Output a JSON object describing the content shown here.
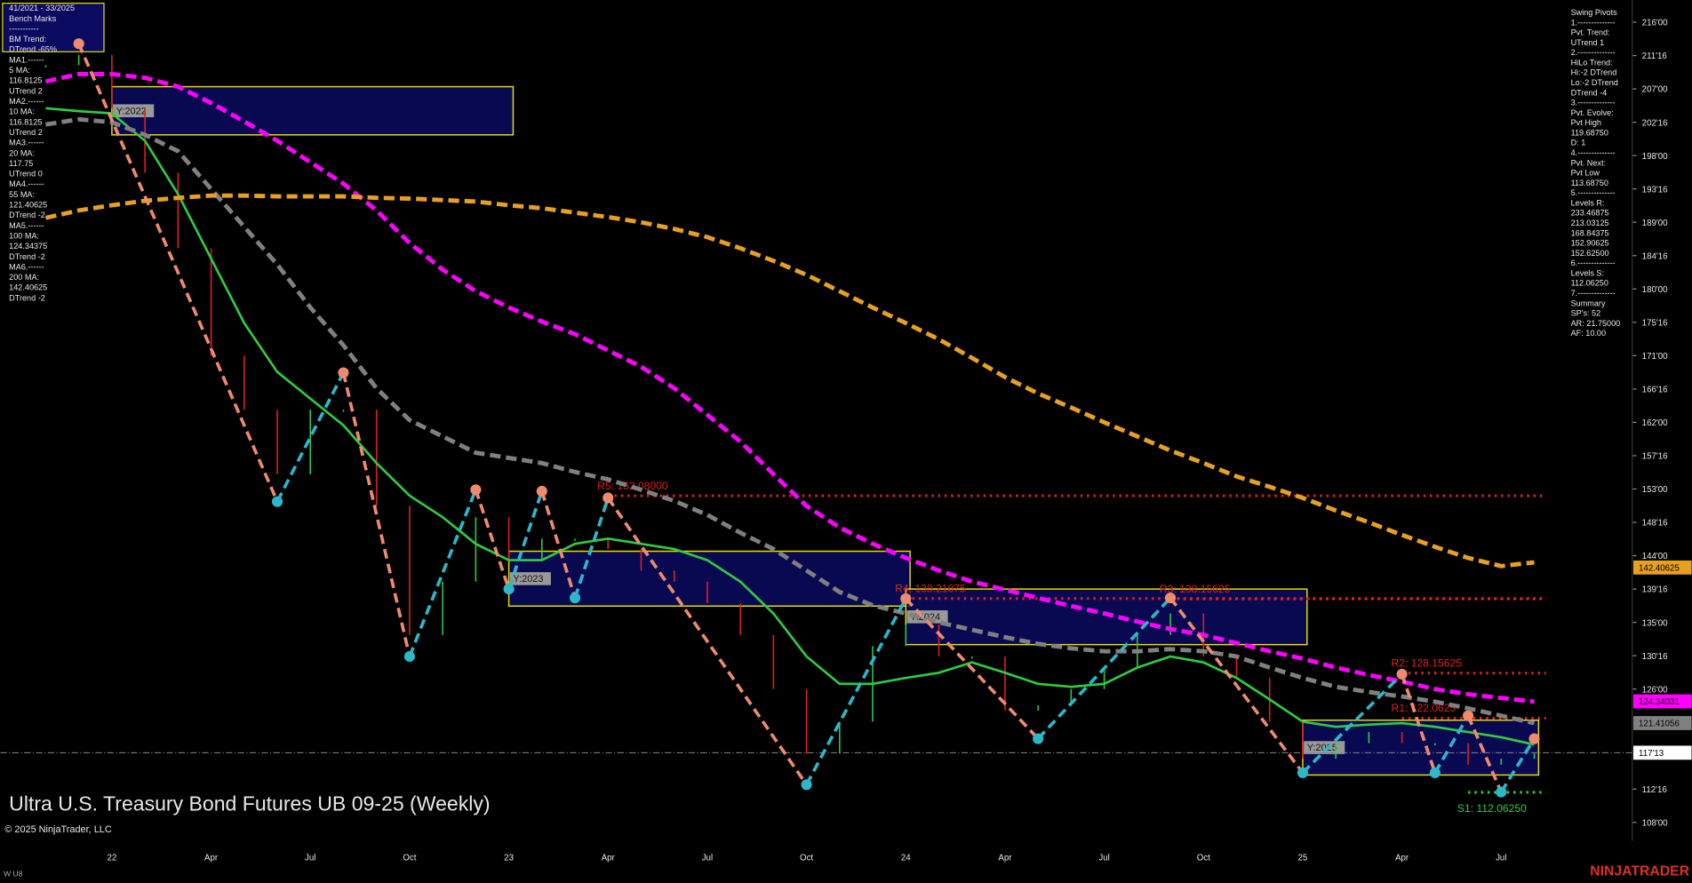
{
  "chart_data": {
    "type": "line",
    "title": "Ultra U.S. Treasury Bond Futures UB 09-25 (Weekly)",
    "copyright": "© 2025 NinjaTrader, LLC",
    "instrument_tag": "W U8",
    "brand": "NINJATRADER",
    "categories": [
      null,
      null,
      "22",
      null,
      null,
      "Apr",
      null,
      null,
      "Jul",
      null,
      null,
      "Oct",
      null,
      null,
      "23",
      null,
      null,
      "Apr",
      null,
      null,
      "Jul",
      null,
      null,
      "Oct",
      null,
      null,
      "24",
      null,
      null,
      "Apr",
      null,
      null,
      "Jul",
      null,
      null,
      "Oct",
      null,
      null,
      "25",
      null,
      null,
      "Apr",
      null,
      null,
      "Jul",
      null
    ],
    "ylim": [
      105.5,
      219
    ],
    "yticks": [
      {
        "value": 216,
        "label": "216'00"
      },
      {
        "value": 211.5,
        "label": "211'16"
      },
      {
        "value": 207,
        "label": "207'00"
      },
      {
        "value": 202.5,
        "label": "202'16"
      },
      {
        "value": 198,
        "label": "198'00"
      },
      {
        "value": 193.5,
        "label": "193'16"
      },
      {
        "value": 189,
        "label": "189'00"
      },
      {
        "value": 184.5,
        "label": "184'16"
      },
      {
        "value": 180,
        "label": "180'00"
      },
      {
        "value": 175.5,
        "label": "175'16"
      },
      {
        "value": 171,
        "label": "171'00"
      },
      {
        "value": 166.5,
        "label": "166'16"
      },
      {
        "value": 162,
        "label": "162'00"
      },
      {
        "value": 157.5,
        "label": "157'16"
      },
      {
        "value": 153,
        "label": "153'00"
      },
      {
        "value": 148.5,
        "label": "148'16"
      },
      {
        "value": 144,
        "label": "144'00"
      },
      {
        "value": 139.5,
        "label": "139'16"
      },
      {
        "value": 135,
        "label": "135'00"
      },
      {
        "value": 130.5,
        "label": "130'16"
      },
      {
        "value": 126,
        "label": "126'00"
      },
      {
        "value": 112.5,
        "label": "112'16"
      },
      {
        "value": 108,
        "label": "108'00"
      }
    ],
    "close": {
      "up_color": "#2ecc40",
      "down_color": "#e02020",
      "values": [
        210.2,
        211.6,
        204.4,
        195.7,
        185.5,
        171,
        163.7,
        155,
        163.7,
        163.7,
        150.7,
        133.3,
        140.5,
        149.2,
        143.4,
        146.3,
        146.3,
        144.9,
        142,
        140.5,
        137.6,
        133.3,
        126,
        117.3,
        121.6,
        131.8,
        134.7,
        130.4,
        130.4,
        123.1,
        123.8,
        126,
        128.9,
        133.3,
        136.2,
        130.4,
        127.5,
        121.6,
        116.6,
        118.7,
        120.2,
        118.7,
        118.7,
        115.8,
        116.6,
        117.3
      ]
    },
    "series": [
      {
        "color": "#2ecc40",
        "dash": false,
        "values": [
          204.4,
          204,
          203.7,
          200,
          192.8,
          184.1,
          175.4,
          168.8,
          165.2,
          161.6,
          156.5,
          152.1,
          149.2,
          145.6,
          143.4,
          143.4,
          145.6,
          146.3,
          145.6,
          144.9,
          143.4,
          140.5,
          136.2,
          130.4,
          126.7,
          126.7,
          127.5,
          128.2,
          129.6,
          128.2,
          126.7,
          126.3,
          126.7,
          128.9,
          130.4,
          129.6,
          127.5,
          124.6,
          121.6,
          120.9,
          121.2,
          121.4,
          120.9,
          120.2,
          119.5,
          118.5
        ]
      },
      {
        "color": "#808080",
        "dash": true,
        "values": [
          202.2,
          202.9,
          202.5,
          200.8,
          198.6,
          193.5,
          188.4,
          183.3,
          177.5,
          172.4,
          166.6,
          162.3,
          160.1,
          157.9,
          157.2,
          156.5,
          155.3,
          154.3,
          152.9,
          151.4,
          149.5,
          147.1,
          144.9,
          142,
          139.1,
          137.3,
          136.2,
          135,
          134,
          133,
          132.1,
          131.5,
          131.1,
          131.1,
          131.4,
          131.1,
          130.4,
          128.9,
          127.5,
          126.3,
          125.6,
          125,
          124.3,
          123.4,
          122.4,
          121.4
        ]
      },
      {
        "color": "#ff00ff",
        "dash": true,
        "values": [
          208,
          209,
          209,
          208.5,
          207.3,
          205.1,
          202.6,
          200,
          197.1,
          194.2,
          190.6,
          186.2,
          182.6,
          179.7,
          177.5,
          175.6,
          173.9,
          171.7,
          169.5,
          166.6,
          163,
          159.4,
          155,
          150.7,
          147.8,
          145.6,
          143.7,
          142,
          140.5,
          139.4,
          138.3,
          137.2,
          136.2,
          135.1,
          134.1,
          133.3,
          132.2,
          131.1,
          130.1,
          128.9,
          127.9,
          127,
          126,
          125.3,
          124.8,
          124.3
        ]
      },
      {
        "color": "#e8a020",
        "dash": true,
        "values": [
          189.6,
          190.6,
          191.3,
          191.9,
          192.3,
          192.6,
          192.6,
          192.5,
          192.5,
          192.5,
          192.3,
          192.2,
          192,
          191.8,
          191.3,
          190.9,
          190.3,
          189.7,
          189,
          188.1,
          187,
          185.5,
          183.8,
          181.9,
          179.7,
          177.5,
          175.4,
          173.2,
          170.7,
          168.1,
          165.9,
          164,
          162,
          160.1,
          158.2,
          156.5,
          154.7,
          153.3,
          151.8,
          150.1,
          148.5,
          146.8,
          145.2,
          143.7,
          142.6,
          143.1
        ]
      }
    ],
    "pivots": {
      "high_color": "#f08a6e",
      "low_color": "#2bb8c8",
      "points": [
        {
          "at": 1,
          "value": 213.1
        },
        {
          "at": 7,
          "value": 151.3
        },
        {
          "at": 9,
          "value": 168.7
        },
        {
          "at": 11,
          "value": 130.4
        },
        {
          "at": 13,
          "value": 152.9
        },
        {
          "at": 14,
          "value": 139.5
        },
        {
          "at": 15,
          "value": 152.7
        },
        {
          "at": 16,
          "value": 138.3
        },
        {
          "at": 17,
          "value": 151.8
        },
        {
          "at": 23,
          "value": 113.1
        },
        {
          "at": 26,
          "value": 138.2
        },
        {
          "at": 30,
          "value": 119.3
        },
        {
          "at": 34,
          "value": 138.3
        },
        {
          "at": 38,
          "value": 114.7
        },
        {
          "at": 41,
          "value": 128.0
        },
        {
          "at": 42,
          "value": 114.7
        },
        {
          "at": 43,
          "value": 122.4
        },
        {
          "at": 44,
          "value": 112.1
        },
        {
          "at": 45,
          "value": 119.3
        }
      ]
    },
    "levels": [
      {
        "label": "R5: 152.08000",
        "value": 152.08,
        "start": 17,
        "color": "#e02020"
      },
      {
        "label": "R4: 138.21875",
        "value": 138.21875,
        "start": 26,
        "color": "#e02020"
      },
      {
        "label": "R3: 138.15625",
        "value": 138.15625,
        "start": 34,
        "color": "#e02020"
      },
      {
        "label": "R2: 128.15625",
        "value": 128.15625,
        "start": 41,
        "color": "#e02020"
      },
      {
        "label": "R1: 122.0625",
        "value": 122.0625,
        "start": 41,
        "color": "#e02020"
      },
      {
        "label": "S1: 112.06250",
        "value": 112.0625,
        "start": 43,
        "color": "#2ecc40"
      }
    ],
    "year_boxes": [
      {
        "label": "Y:2022",
        "top": 207.3,
        "bottom": 200.8,
        "start": 2,
        "end": 14
      },
      {
        "label": "Y:2023",
        "top": 144.6,
        "bottom": 137.2,
        "start": 14,
        "end": 26
      },
      {
        "label": "Y:2024",
        "top": 139.5,
        "bottom": 132,
        "start": 26,
        "end": 38
      },
      {
        "label": "Y:2025",
        "top": 121.8,
        "bottom": 114.4,
        "start": 38,
        "end": 45
      }
    ],
    "price_markers": [
      {
        "value": 142.40625,
        "label": "142.40625",
        "color": "#e8a020"
      },
      {
        "value": 124.34031,
        "label": "124.34031",
        "color": "#ff00ff"
      },
      {
        "value": 121.41056,
        "label": "121.41056",
        "color": "#808080"
      },
      {
        "value": 117.40625,
        "label": "117'13",
        "color": "#ffffff"
      }
    ],
    "left_panel": [
      "41/2021 - 33/2025",
      "Bench Marks",
      "-----------",
      "BM Trend:",
      "DTrend -65%",
      "MA1.------",
      "5 MA:",
      "116.8125",
      "UTrend 2",
      "MA2.------",
      "10 MA:",
      "116.8125",
      "UTrend 2",
      "MA3.------",
      "20 MA:",
      "117.75",
      "UTrend 0",
      "MA4.------",
      "55 MA:",
      "121.40625",
      "DTrend -2",
      "MA5.------",
      "100 MA:",
      "124.34375",
      "DTrend -2",
      "MA6.------",
      "200 MA:",
      "142.40625",
      "DTrend -2"
    ],
    "right_panel": [
      "Swing Pivots",
      "1.--------------",
      "Pvt. Trend:",
      "UTrend 1",
      "2.--------------",
      "HiLo Trend:",
      "Hi:-2 DTrend",
      "Lo:-2 DTrend",
      "DTrend -4",
      "3.--------------",
      "Pvt. Evolve:",
      "Pvt High",
      "119.68750",
      "D: 1",
      "4.--------------",
      "Pvt. Next:",
      "Pvt Low",
      "113.68750",
      "5.--------------",
      "Levels R:",
      "233.46875",
      "213.03125",
      "168.84375",
      "152.90625",
      "152.62500",
      "6.--------------",
      "Levels S:",
      "112.06250",
      "7.--------------",
      "Summary",
      "SP's: 52",
      "AR: 21.75000",
      "AF: 10.00"
    ]
  }
}
